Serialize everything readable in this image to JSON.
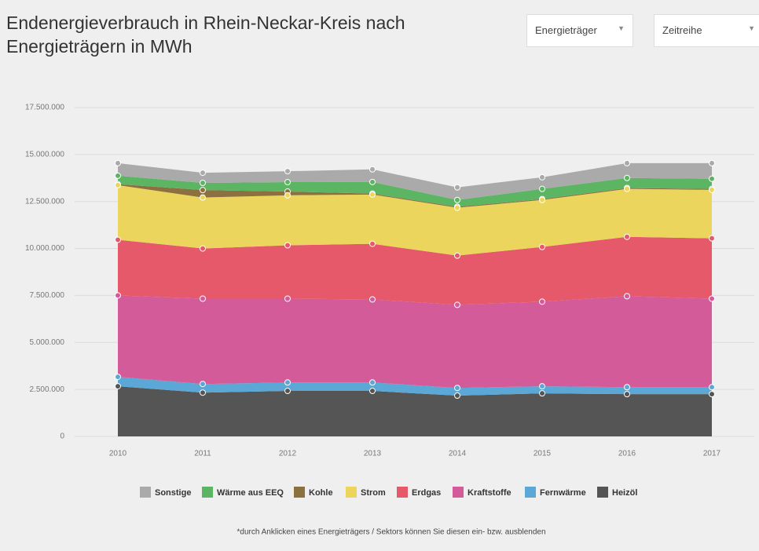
{
  "controls": {
    "dropdown_1": "Energieträger",
    "dropdown_2": "Zeitreihe"
  },
  "chart_data": {
    "type": "stacked_area",
    "title": "Endenergieverbrauch in Rhein-Neckar-Kreis nach Energieträgern in MWh",
    "categories": [
      "2010",
      "2011",
      "2012",
      "2013",
      "2014",
      "2015",
      "2016",
      "2017"
    ],
    "series": [
      {
        "name": "Sonstige",
        "color": "#aaaaaa",
        "values": [
          670000,
          540000,
          580000,
          670000,
          670000,
          620000,
          790000,
          830000
        ]
      },
      {
        "name": "Wärme aus EEQ",
        "color": "#5cb563",
        "values": [
          450000,
          380000,
          500000,
          620000,
          360000,
          540000,
          530000,
          540000
        ]
      },
      {
        "name": "Kohle",
        "color": "#8d7040",
        "values": [
          50000,
          400000,
          200000,
          50000,
          50000,
          50000,
          50000,
          50000
        ]
      },
      {
        "name": "Strom",
        "color": "#ebd55c",
        "values": [
          2910000,
          2710000,
          2660000,
          2620000,
          2550000,
          2500000,
          2550000,
          2580000
        ]
      },
      {
        "name": "Erdgas",
        "color": "#e6596a",
        "values": [
          2960000,
          2670000,
          2840000,
          2960000,
          2620000,
          2910000,
          3160000,
          3210000
        ]
      },
      {
        "name": "Kraftstoffe",
        "color": "#d35b9a",
        "values": [
          4330000,
          4540000,
          4460000,
          4420000,
          4420000,
          4500000,
          4840000,
          4710000
        ]
      },
      {
        "name": "Fernwärme",
        "color": "#5ba7d6",
        "values": [
          500000,
          460000,
          450000,
          450000,
          410000,
          380000,
          370000,
          370000
        ]
      },
      {
        "name": "Heizöl",
        "color": "#555555",
        "values": [
          2670000,
          2330000,
          2420000,
          2420000,
          2170000,
          2290000,
          2250000,
          2250000
        ]
      }
    ],
    "ylim": [
      0,
      17500000
    ],
    "yticks": [
      0,
      {
        "value": 2500000,
        "label": "2.500.000"
      },
      {
        "value": 5000000,
        "label": "5.000.000"
      },
      {
        "value": 7500000,
        "label": "7.500.000"
      },
      {
        "value": 10000000,
        "label": "10.000.000"
      },
      {
        "value": 12500000,
        "label": "12.500.000"
      },
      {
        "value": 15000000,
        "label": "15.000.000"
      },
      {
        "value": 17500000,
        "label": "17.500.000"
      }
    ],
    "grid": true,
    "note": "*durch Anklicken eines Energieträgers / Sektors können Sie diesen ein- bzw. ausblenden"
  }
}
